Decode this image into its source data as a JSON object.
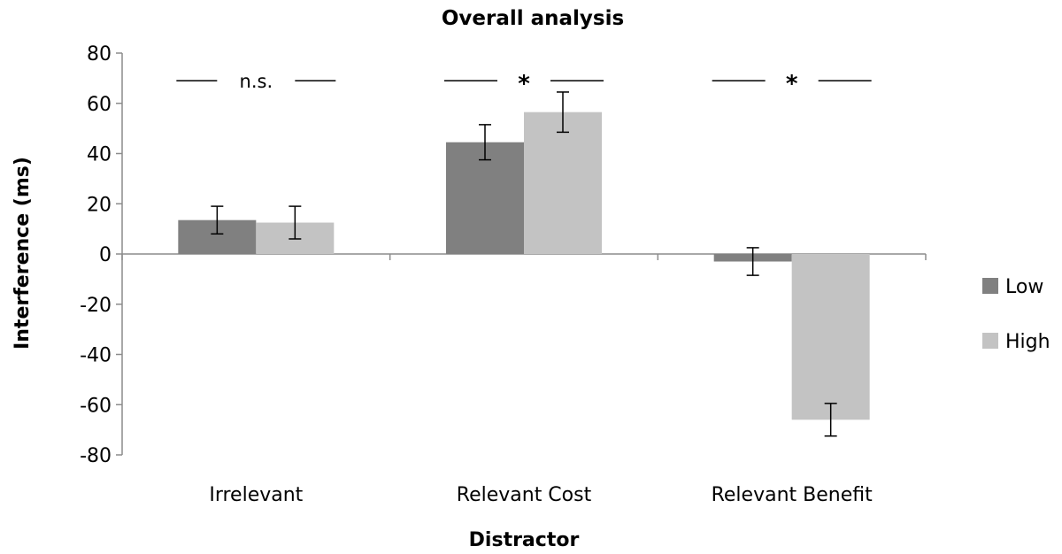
{
  "chart_data": {
    "type": "bar",
    "title": "Overall analysis",
    "xlabel": "Distractor",
    "ylabel": "Interference (ms)",
    "ylim": [
      -80,
      80
    ],
    "yticks": [
      "80",
      "60",
      "40",
      "20",
      "0",
      "-20",
      "-40",
      "-60",
      "-80"
    ],
    "ytick_values": [
      80,
      60,
      40,
      20,
      0,
      -20,
      -40,
      -60,
      -80
    ],
    "categories": [
      "Irrelevant",
      "Relevant Cost",
      "Relevant Benefit"
    ],
    "series": [
      {
        "name": "Low",
        "color": "#808080",
        "values": [
          13.5,
          44.5,
          -3
        ],
        "errors": [
          5.5,
          7,
          5.5
        ]
      },
      {
        "name": "High",
        "color": "#c3c3c3",
        "values": [
          12.5,
          56.5,
          -66
        ],
        "errors": [
          6.5,
          8,
          6.5
        ]
      }
    ],
    "significance": [
      "n.s.",
      "*",
      "*"
    ],
    "significance_level": 69,
    "legend_position": "right"
  }
}
